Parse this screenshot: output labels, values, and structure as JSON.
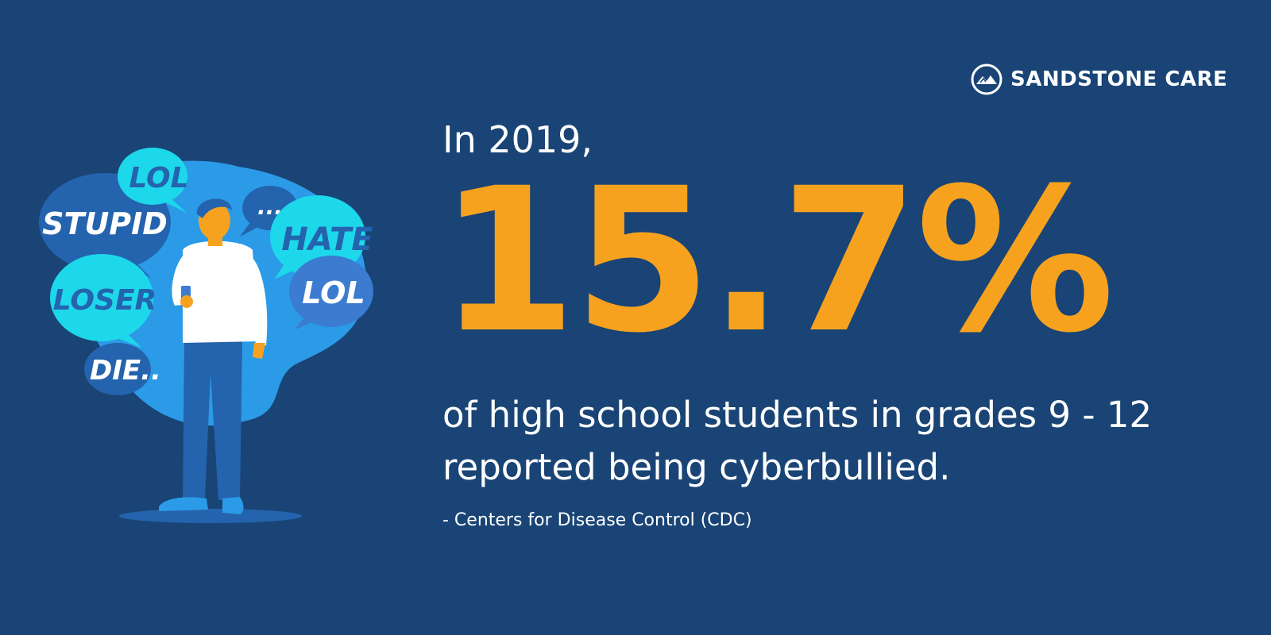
{
  "brand": {
    "name": "SANDSTONE CARE",
    "icon": "mountain-circle-icon",
    "color": "#ffffff"
  },
  "headline": {
    "intro": "In 2019,",
    "stat": "15.7%",
    "description_lines": [
      "of high school students in grades 9 - 12",
      "reported being cyberbullied."
    ],
    "source": "- Centers for Disease Control (CDC)"
  },
  "illustration": {
    "bubbles": [
      {
        "word": "LOL"
      },
      {
        "word": "STUPID"
      },
      {
        "word": "..."
      },
      {
        "word": "HATE"
      },
      {
        "word": "LOSER"
      },
      {
        "word": "LOL"
      },
      {
        "word": "DIE.."
      }
    ]
  },
  "colors": {
    "background": "#194475",
    "accent": "#f7a21f",
    "text": "#ffffff",
    "bubble_dark": "#2463ad",
    "bubble_cyan": "#1dd7ea",
    "bubble_blue": "#2b9be8"
  }
}
